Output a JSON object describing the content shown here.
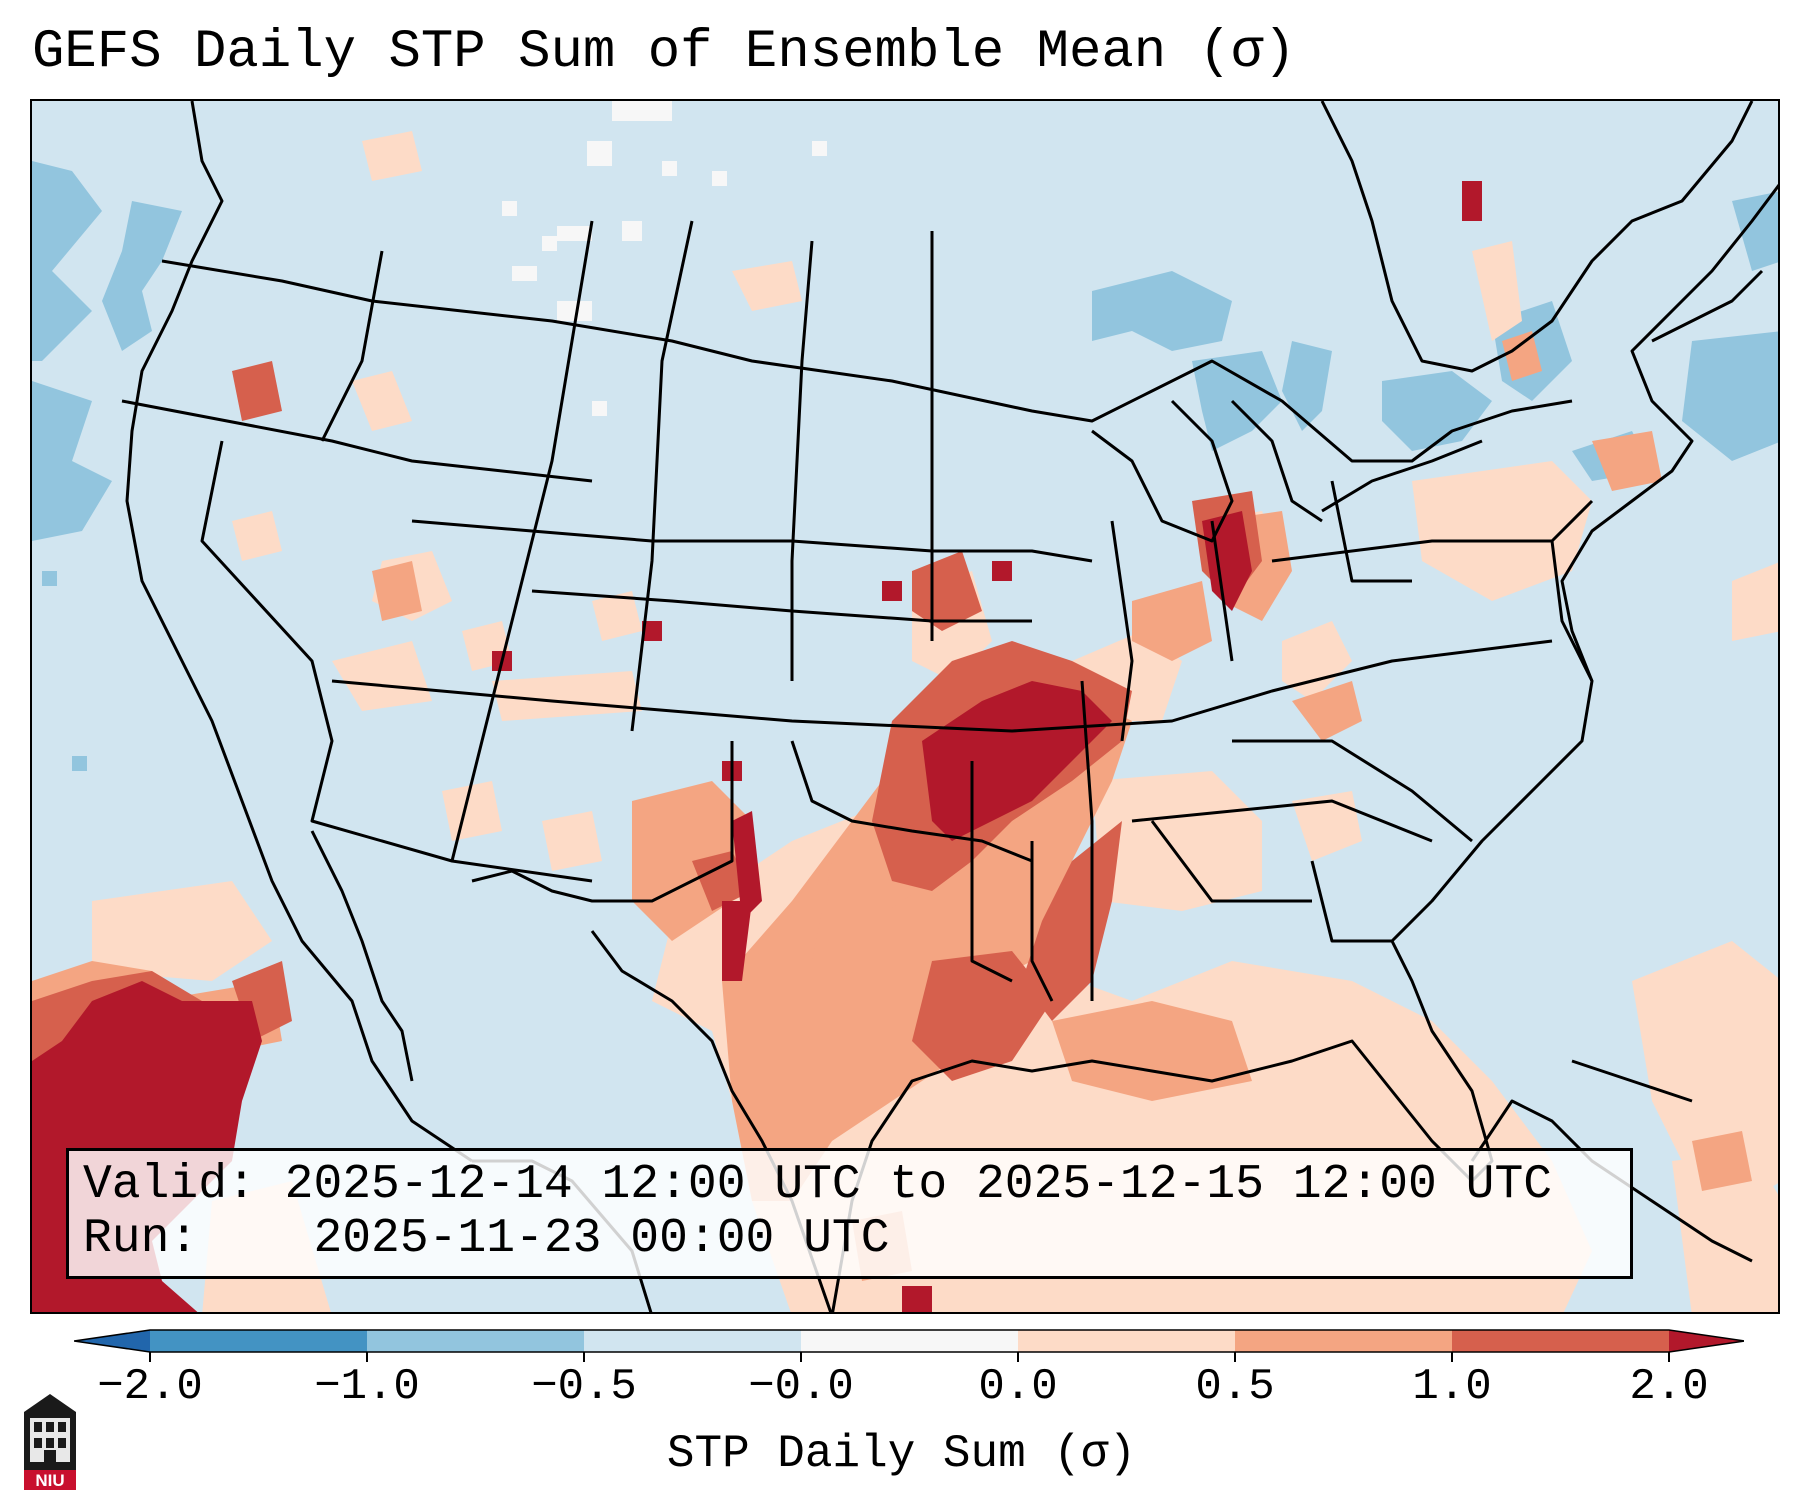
{
  "title": "GEFS Daily STP Sum of Ensemble Mean (σ)",
  "info": {
    "valid_label": "Valid:",
    "valid_value": "2025-12-14 12:00 UTC to 2025-12-15 12:00 UTC",
    "run_label": "Run:",
    "run_value": "2025-11-23 00:00 UTC"
  },
  "colorbar": {
    "label": "STP Daily Sum (σ)",
    "ticks": [
      "−2.0",
      "−1.0",
      "−0.5",
      "−0.0",
      "0.0",
      "0.5",
      "1.0",
      "2.0"
    ],
    "bin_colors": [
      "#4393c3",
      "#92c5de",
      "#d1e5f0",
      "#f7f7f7",
      "#fddbc7",
      "#f4a582",
      "#d6604d"
    ],
    "under_color": "#2166ac",
    "over_color": "#b2182b"
  },
  "map": {
    "region": "Continental United States",
    "background_color": "#d1e5f0"
  },
  "logo": {
    "text": "NIU"
  }
}
